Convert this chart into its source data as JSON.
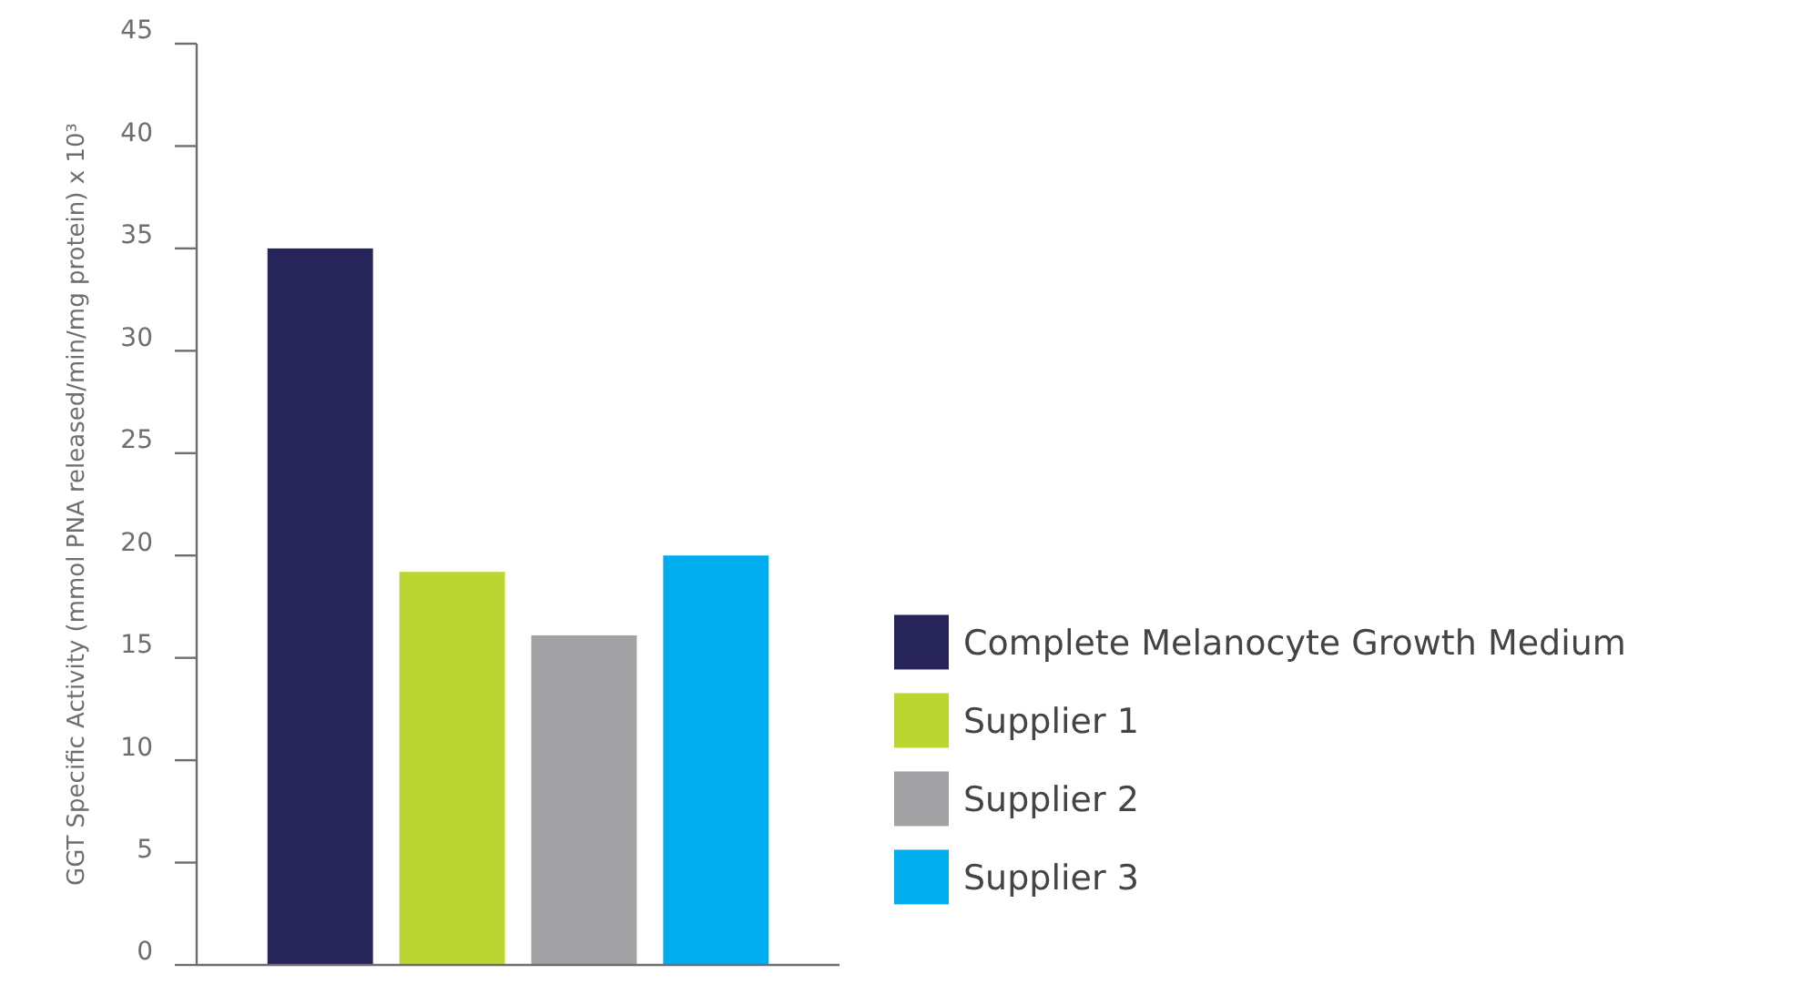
{
  "chart_data": {
    "type": "bar",
    "ylabel": "GGT Specific Activity (mmol PNA released/min/mg protein) x 10³",
    "categories": [
      null
    ],
    "series": [
      {
        "name": "Complete Melanocyte Growth Medium",
        "color": "#27245a",
        "values": [
          35
        ]
      },
      {
        "name": "Supplier 1",
        "color": "#bcd631",
        "values": [
          19.2
        ]
      },
      {
        "name": "Supplier 2",
        "color": "#a2a2a4",
        "values": [
          16.1
        ]
      },
      {
        "name": "Supplier 3",
        "color": "#00aeef",
        "values": [
          20
        ]
      }
    ],
    "ylim": [
      0,
      45
    ],
    "yticks": [
      0,
      5,
      10,
      15,
      20,
      25,
      30,
      35,
      40,
      45
    ],
    "legend": "right"
  }
}
